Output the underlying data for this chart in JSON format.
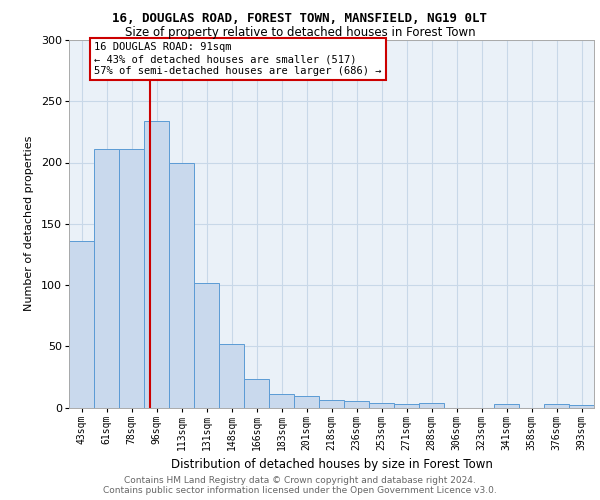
{
  "title1": "16, DOUGLAS ROAD, FOREST TOWN, MANSFIELD, NG19 0LT",
  "title2": "Size of property relative to detached houses in Forest Town",
  "xlabel": "Distribution of detached houses by size in Forest Town",
  "ylabel": "Number of detached properties",
  "footnote1": "Contains HM Land Registry data © Crown copyright and database right 2024.",
  "footnote2": "Contains public sector information licensed under the Open Government Licence v3.0.",
  "bar_labels": [
    "43sqm",
    "61sqm",
    "78sqm",
    "96sqm",
    "113sqm",
    "131sqm",
    "148sqm",
    "166sqm",
    "183sqm",
    "201sqm",
    "218sqm",
    "236sqm",
    "253sqm",
    "271sqm",
    "288sqm",
    "306sqm",
    "323sqm",
    "341sqm",
    "358sqm",
    "376sqm",
    "393sqm"
  ],
  "bar_values": [
    136,
    211,
    211,
    234,
    200,
    102,
    52,
    23,
    11,
    9,
    6,
    5,
    4,
    3,
    4,
    0,
    0,
    3,
    0,
    3,
    2
  ],
  "bar_color": "#c9d9ed",
  "bar_edge_color": "#5b9bd5",
  "vline_color": "#cc0000",
  "annotation_line1": "16 DOUGLAS ROAD: 91sqm",
  "annotation_line2": "← 43% of detached houses are smaller (517)",
  "annotation_line3": "57% of semi-detached houses are larger (686) →",
  "annotation_box_color": "#ffffff",
  "annotation_box_edge": "#cc0000",
  "ylim": [
    0,
    300
  ],
  "yticks": [
    0,
    50,
    100,
    150,
    200,
    250,
    300
  ],
  "grid_color": "#c8d8e8",
  "bg_color": "#eaf1f8",
  "title1_fontsize": 9,
  "title2_fontsize": 8.5,
  "footnote_fontsize": 6.5,
  "footnote_color": "#666666"
}
